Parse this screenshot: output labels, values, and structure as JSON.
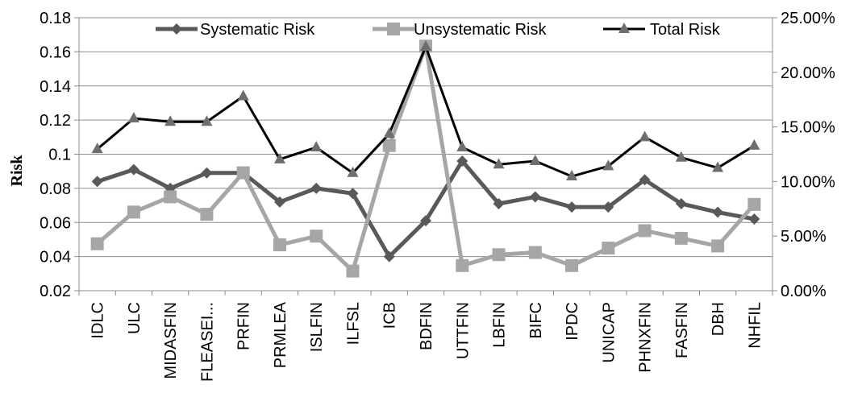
{
  "chart_data": {
    "type": "line",
    "title": "",
    "xlabel": "",
    "ylabel": "Risk",
    "ylabel_right": "",
    "categories": [
      "IDLC",
      "ULC",
      "MIDASFIN",
      "FLEASEI...",
      "PRFIN",
      "PRMLEA",
      "ISLFIN",
      "ILFSL",
      "ICB",
      "BDFIN",
      "UTTFIN",
      "LBFIN",
      "BIFC",
      "IPDC",
      "UNICAP",
      "PHNXFIN",
      "FASFIN",
      "DBH",
      "NHFIL"
    ],
    "ylim": [
      0.02,
      0.18
    ],
    "yticks": [
      "0.02",
      "0.04",
      "0.06",
      "0.08",
      "0.1",
      "0.12",
      "0.14",
      "0.16",
      "0.18"
    ],
    "ylim_right": [
      0,
      25
    ],
    "yticks_right": [
      "0.00%",
      "5.00%",
      "10.00%",
      "15.00%",
      "20.00%",
      "25.00%"
    ],
    "grid": true,
    "legend_position": "top",
    "series": [
      {
        "name": "Systematic Risk",
        "axis": "left",
        "color": "#595959",
        "marker": "diamond",
        "values": [
          0.084,
          0.091,
          0.08,
          0.089,
          0.089,
          0.072,
          0.08,
          0.077,
          0.04,
          0.061,
          0.096,
          0.071,
          0.075,
          0.069,
          0.069,
          0.085,
          0.071,
          0.066,
          0.062
        ]
      },
      {
        "name": "Unsystematic Risk",
        "axis": "right",
        "color": "#a6a6a6",
        "marker": "square",
        "values": [
          4.3,
          7.2,
          8.6,
          7.0,
          10.8,
          4.2,
          5.0,
          1.8,
          13.3,
          22.4,
          2.3,
          3.3,
          3.5,
          2.3,
          3.9,
          5.5,
          4.8,
          4.1,
          7.9
        ]
      },
      {
        "name": "Total Risk",
        "axis": "left",
        "color": "#000000",
        "marker": "triangle",
        "values": [
          0.103,
          0.121,
          0.119,
          0.119,
          0.134,
          0.097,
          0.104,
          0.089,
          0.112,
          0.163,
          0.104,
          0.094,
          0.096,
          0.087,
          0.093,
          0.11,
          0.098,
          0.092,
          0.105
        ]
      }
    ]
  }
}
